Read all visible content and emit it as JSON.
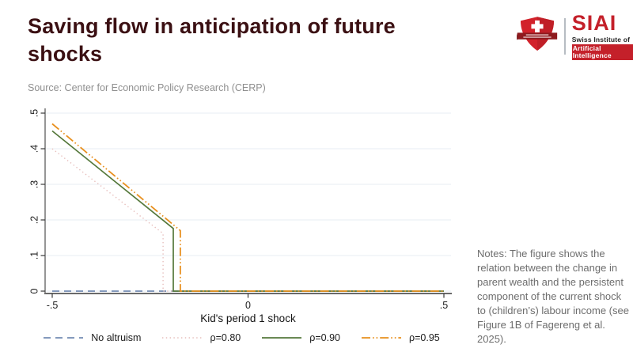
{
  "header": {
    "title": "Saving flow in anticipation of future shocks",
    "source_label": "Source: Center for Economic Policy Research (CERP)"
  },
  "logo": {
    "acronym": "SIAI",
    "line1": "Swiss Institute of",
    "line2": "Artificial Intelligence",
    "brand_red": "#c4202a",
    "banner_red": "#8e1a1e"
  },
  "notes": {
    "text": "Notes: The figure shows the relation between the change in parent wealth and the persistent component of the current shock to (children’s) labour income (see Figure 1B of Fagereng et al. 2025)."
  },
  "chart_data": {
    "type": "line",
    "title": "",
    "xlabel": "Kid's period 1 shock",
    "ylabel": "",
    "xlim": [
      -0.5,
      0.5
    ],
    "ylim": [
      0,
      0.5
    ],
    "xticks": [
      -0.5,
      0,
      0.5
    ],
    "xtick_labels": [
      "-.5",
      "0",
      ".5"
    ],
    "yticks": [
      0,
      0.1,
      0.2,
      0.3,
      0.4,
      0.5
    ],
    "ytick_labels": [
      "0",
      ".1",
      ".2",
      ".3",
      ".4",
      ".5"
    ],
    "grid": "horizontal",
    "grid_color": "#e7eef3",
    "axis_color": "#6a6a6a",
    "tick_label_color": "#1f1f1f",
    "legend_position": "bottom",
    "series": [
      {
        "name": "No altruism",
        "color": "#5b79a6",
        "style": "dashed",
        "points": [
          [
            -0.5,
            0
          ],
          [
            0.5,
            0
          ]
        ]
      },
      {
        "name": "ρ=0.80",
        "color": "#e7bebc",
        "style": "dotted",
        "points": [
          [
            -0.5,
            0.4
          ],
          [
            -0.217,
            0.162
          ],
          [
            -0.217,
            0
          ],
          [
            0.5,
            0
          ]
        ]
      },
      {
        "name": "ρ=0.90",
        "color": "#55783b",
        "style": "solid",
        "points": [
          [
            -0.5,
            0.45
          ],
          [
            -0.191,
            0.176
          ],
          [
            -0.191,
            0
          ],
          [
            0.5,
            0
          ]
        ]
      },
      {
        "name": "ρ=0.95",
        "color": "#e8901f",
        "style": "dashdot",
        "points": [
          [
            -0.5,
            0.47
          ],
          [
            -0.173,
            0.17
          ],
          [
            -0.173,
            0
          ],
          [
            0.5,
            0
          ]
        ]
      }
    ]
  }
}
